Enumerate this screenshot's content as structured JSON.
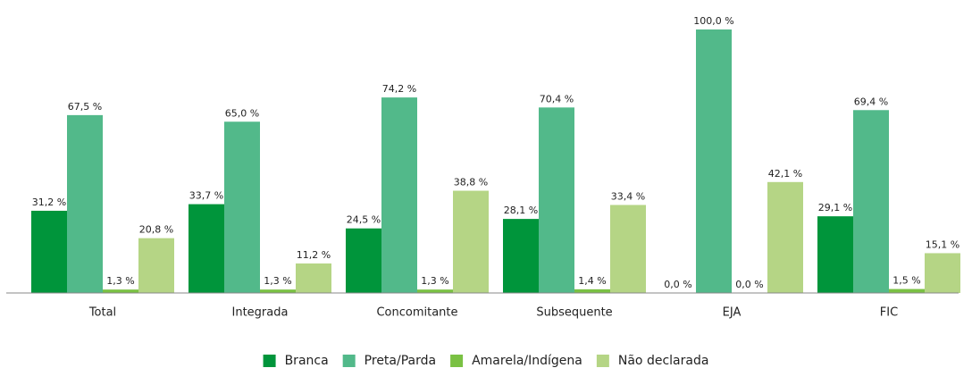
{
  "chart_data": {
    "type": "bar",
    "categories": [
      "Total",
      "Integrada",
      "Concomitante",
      "Subsequente",
      "EJA",
      "FIC"
    ],
    "ylim": [
      0,
      100
    ],
    "series": [
      {
        "name": "Branca",
        "color": "#00953b",
        "values": [
          31.2,
          33.7,
          24.5,
          28.1,
          0.0,
          29.1
        ],
        "value_labels": [
          "31,2 %",
          "33,7 %",
          "24,5 %",
          "28,1 %",
          "0,0 %",
          "29,1 %"
        ]
      },
      {
        "name": "Preta/Parda",
        "color": "#52b98a",
        "values": [
          67.5,
          65.0,
          74.2,
          70.4,
          100.0,
          69.4
        ],
        "value_labels": [
          "67,5 %",
          "65,0 %",
          "74,2 %",
          "70,4 %",
          "100,0 %",
          "69,4 %"
        ]
      },
      {
        "name": "Amarela/Indígena",
        "color": "#7ac143",
        "values": [
          1.3,
          1.3,
          1.3,
          1.4,
          0.0,
          1.5
        ],
        "value_labels": [
          "1,3 %",
          "1,3 %",
          "1,3 %",
          "1,4 %",
          "0,0 %",
          "1,5 %"
        ]
      },
      {
        "name": "Não declarada",
        "color": "#b5d585",
        "values": [
          20.8,
          11.2,
          38.8,
          33.4,
          42.1,
          15.1
        ],
        "value_labels": [
          "20,8 %",
          "11,2 %",
          "38,8 %",
          "33,4 %",
          "42,1 %",
          "15,1 %"
        ]
      }
    ],
    "legend": "bottom"
  }
}
